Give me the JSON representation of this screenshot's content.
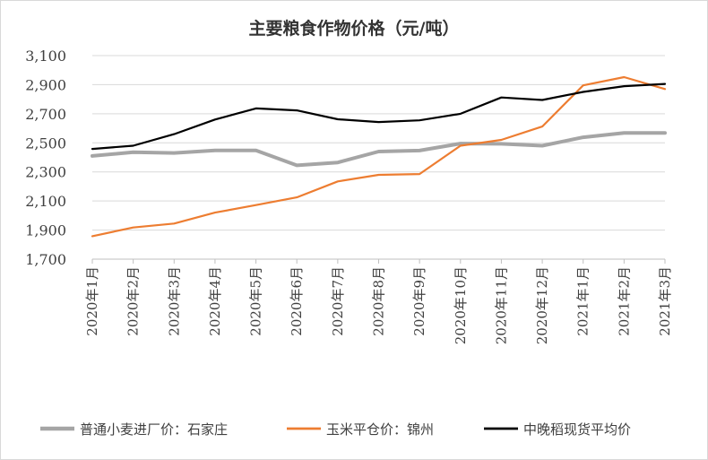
{
  "chart_data": {
    "type": "line",
    "title": "主要粮食作物价格（元/吨）",
    "xlabel": "",
    "ylabel": "",
    "ylim": [
      1700,
      3100
    ],
    "yticks": [
      1700,
      1900,
      2100,
      2300,
      2500,
      2700,
      2900,
      3100
    ],
    "ytick_labels": [
      "1,700",
      "1,900",
      "2,100",
      "2,300",
      "2,500",
      "2,700",
      "2,900",
      "3,100"
    ],
    "grid": true,
    "legend_position": "bottom",
    "categories": [
      "2020年1月",
      "2020年2月",
      "2020年3月",
      "2020年4月",
      "2020年5月",
      "2020年6月",
      "2020年7月",
      "2020年8月",
      "2020年9月",
      "2020年10月",
      "2020年11月",
      "2020年12月",
      "2021年1月",
      "2021年2月",
      "2021年3月"
    ],
    "series": [
      {
        "name": "普通小麦进厂价：石家庄",
        "color": "#a5a5a5",
        "width": 4,
        "values": [
          2410,
          2435,
          2430,
          2448,
          2448,
          2345,
          2365,
          2440,
          2447,
          2495,
          2493,
          2480,
          2538,
          2568,
          2568
        ]
      },
      {
        "name": "玉米平仓价：锦州",
        "color": "#ed7d31",
        "width": 2.2,
        "values": [
          1858,
          1918,
          1945,
          2020,
          2072,
          2125,
          2235,
          2280,
          2285,
          2480,
          2520,
          2612,
          2895,
          2952,
          2870
        ]
      },
      {
        "name": "中晚稻现货平均价",
        "color": "#000000",
        "width": 2.2,
        "values": [
          2458,
          2480,
          2560,
          2660,
          2737,
          2723,
          2662,
          2643,
          2655,
          2700,
          2812,
          2795,
          2850,
          2890,
          2905
        ]
      }
    ]
  }
}
